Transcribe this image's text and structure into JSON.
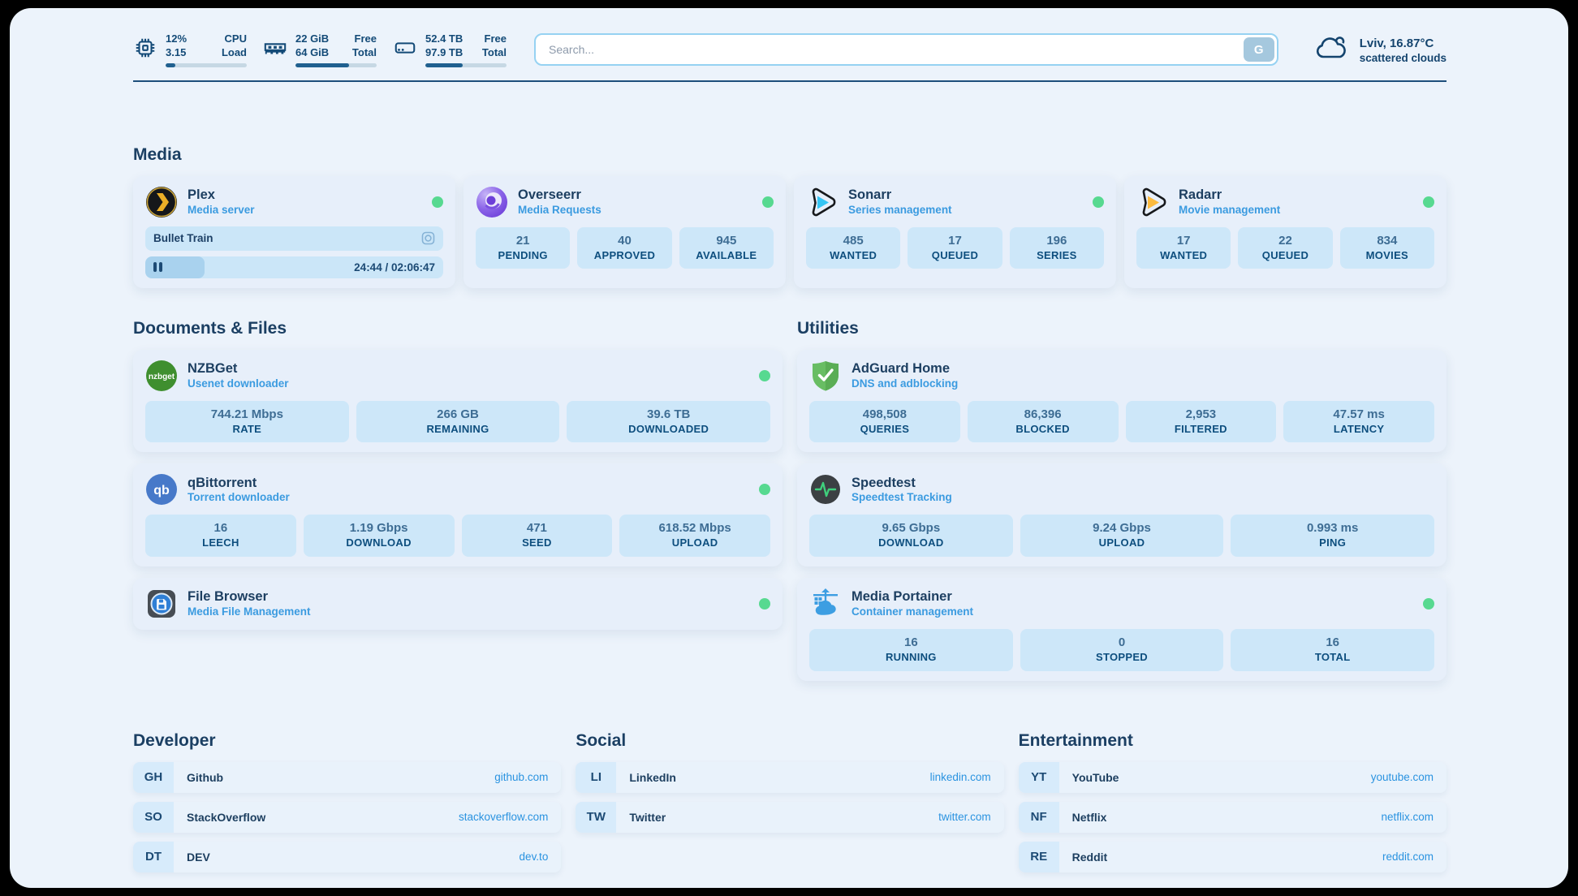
{
  "header": {
    "system_stats": [
      {
        "icon": "cpu-icon",
        "values": [
          "12%",
          "3.15"
        ],
        "labels": [
          "CPU",
          "Load"
        ],
        "progress_pct": 12
      },
      {
        "icon": "memory-icon",
        "values": [
          "22 GiB",
          "64 GiB"
        ],
        "labels": [
          "Free",
          "Total"
        ],
        "progress_pct": 66
      },
      {
        "icon": "storage-icon",
        "values": [
          "52.4 TB",
          "97.9 TB"
        ],
        "labels": [
          "Free",
          "Total"
        ],
        "progress_pct": 46
      }
    ],
    "search": {
      "placeholder": "Search...",
      "button_label": "G"
    },
    "weather": {
      "icon": "cloud-icon",
      "location": "Lviv, 16.87°C",
      "condition": "scattered clouds"
    }
  },
  "sections": {
    "media": {
      "title": "Media",
      "cards": [
        {
          "icon": "plex-icon",
          "title": "Plex",
          "subtitle": "Media server",
          "online": true,
          "now_playing": {
            "title": "Bullet Train",
            "time_display": "24:44 / 02:06:47",
            "progress_pct": 20,
            "paused": true
          }
        },
        {
          "icon": "overseerr-icon",
          "title": "Overseerr",
          "subtitle": "Media Requests",
          "online": true,
          "stats": [
            {
              "value": "21",
              "label": "PENDING"
            },
            {
              "value": "40",
              "label": "APPROVED"
            },
            {
              "value": "945",
              "label": "AVAILABLE"
            }
          ]
        },
        {
          "icon": "sonarr-icon",
          "title": "Sonarr",
          "subtitle": "Series management",
          "online": true,
          "stats": [
            {
              "value": "485",
              "label": "WANTED"
            },
            {
              "value": "17",
              "label": "QUEUED"
            },
            {
              "value": "196",
              "label": "SERIES"
            }
          ]
        },
        {
          "icon": "radarr-icon",
          "title": "Radarr",
          "subtitle": "Movie management",
          "online": true,
          "stats": [
            {
              "value": "17",
              "label": "WANTED"
            },
            {
              "value": "22",
              "label": "QUEUED"
            },
            {
              "value": "834",
              "label": "MOVIES"
            }
          ]
        }
      ]
    },
    "documents": {
      "title": "Documents & Files",
      "cards": [
        {
          "icon": "nzbget-icon",
          "title": "NZBGet",
          "subtitle": "Usenet downloader",
          "online": true,
          "stats": [
            {
              "value": "744.21 Mbps",
              "label": "RATE"
            },
            {
              "value": "266 GB",
              "label": "REMAINING"
            },
            {
              "value": "39.6 TB",
              "label": "DOWNLOADED"
            }
          ]
        },
        {
          "icon": "qbittorrent-icon",
          "title": "qBittorrent",
          "subtitle": "Torrent downloader",
          "online": true,
          "stats": [
            {
              "value": "16",
              "label": "LEECH"
            },
            {
              "value": "1.19 Gbps",
              "label": "DOWNLOAD"
            },
            {
              "value": "471",
              "label": "SEED"
            },
            {
              "value": "618.52 Mbps",
              "label": "UPLOAD"
            }
          ]
        },
        {
          "icon": "filebrowser-icon",
          "title": "File Browser",
          "subtitle": "Media File Management",
          "online": true
        }
      ]
    },
    "utilities": {
      "title": "Utilities",
      "cards": [
        {
          "icon": "adguard-icon",
          "title": "AdGuard Home",
          "subtitle": "DNS and adblocking",
          "online": false,
          "stats": [
            {
              "value": "498,508",
              "label": "QUERIES"
            },
            {
              "value": "86,396",
              "label": "BLOCKED"
            },
            {
              "value": "2,953",
              "label": "FILTERED"
            },
            {
              "value": "47.57 ms",
              "label": "LATENCY"
            }
          ]
        },
        {
          "icon": "speedtest-icon",
          "title": "Speedtest",
          "subtitle": "Speedtest Tracking",
          "online": false,
          "stats": [
            {
              "value": "9.65 Gbps",
              "label": "DOWNLOAD"
            },
            {
              "value": "9.24 Gbps",
              "label": "UPLOAD"
            },
            {
              "value": "0.993 ms",
              "label": "PING"
            }
          ]
        },
        {
          "icon": "portainer-icon",
          "title": "Media Portainer",
          "subtitle": "Container management",
          "online": true,
          "stats": [
            {
              "value": "16",
              "label": "RUNNING"
            },
            {
              "value": "0",
              "label": "STOPPED"
            },
            {
              "value": "16",
              "label": "TOTAL"
            }
          ]
        }
      ]
    },
    "bookmarks": [
      {
        "title": "Developer",
        "links": [
          {
            "abbr": "GH",
            "name": "Github",
            "url": "github.com"
          },
          {
            "abbr": "SO",
            "name": "StackOverflow",
            "url": "stackoverflow.com"
          },
          {
            "abbr": "DT",
            "name": "DEV",
            "url": "dev.to"
          }
        ]
      },
      {
        "title": "Social",
        "links": [
          {
            "abbr": "LI",
            "name": "LinkedIn",
            "url": "linkedin.com"
          },
          {
            "abbr": "TW",
            "name": "Twitter",
            "url": "twitter.com"
          }
        ]
      },
      {
        "title": "Entertainment",
        "links": [
          {
            "abbr": "YT",
            "name": "YouTube",
            "url": "youtube.com"
          },
          {
            "abbr": "NF",
            "name": "Netflix",
            "url": "netflix.com"
          },
          {
            "abbr": "RE",
            "name": "Reddit",
            "url": "reddit.com"
          }
        ]
      }
    ]
  },
  "colors": {
    "page_bg": "#ecf3fb",
    "card_bg": "#e7effa",
    "tile_bg": "#cde7f9",
    "navy": "#1d3f61",
    "accent_blue": "#2a93e0",
    "status_green": "#57d990"
  }
}
